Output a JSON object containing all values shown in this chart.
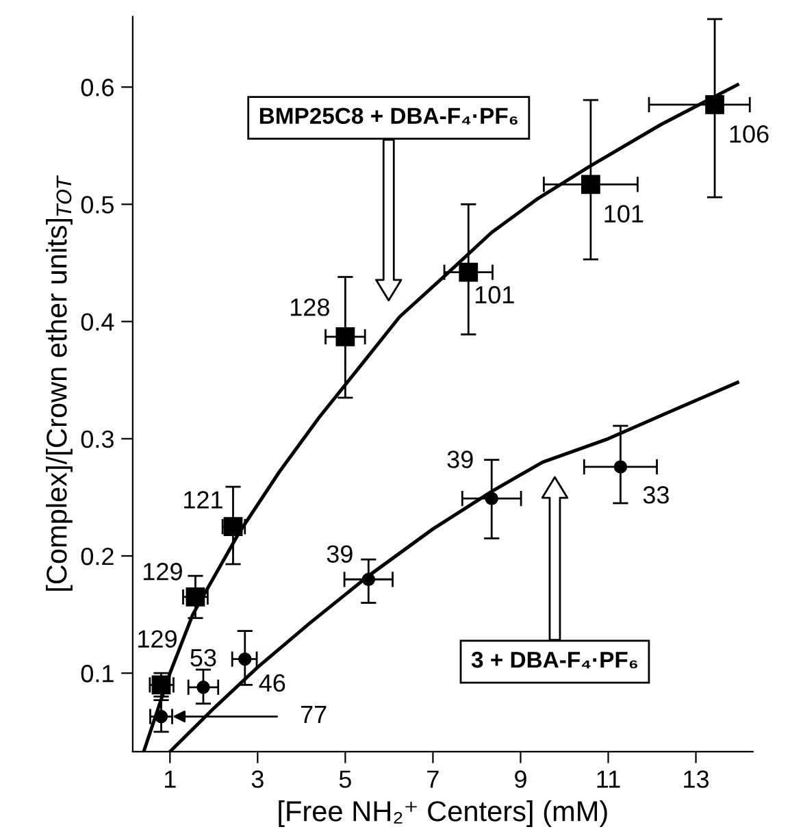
{
  "chart_data": {
    "type": "scatter",
    "xlabel": "[Free NH₂⁺ Centers] (mM)",
    "ylabel": "[Complex]/[Crown ether units]$_{TOT}$",
    "xlim": [
      0.15,
      14.3
    ],
    "ylim": [
      0.033,
      0.66
    ],
    "xticks": [
      1,
      3,
      5,
      7,
      9,
      11,
      13
    ],
    "yticks": [
      0.1,
      0.2,
      0.3,
      0.4,
      0.5,
      0.6
    ],
    "grid": false,
    "legend": false,
    "series": [
      {
        "marker": "square",
        "color": "#000000",
        "x": [
          0.8,
          1.58,
          2.44,
          5.0,
          7.81,
          10.6,
          13.43
        ],
        "values": [
          0.09,
          0.165,
          0.225,
          0.387,
          0.442,
          0.517,
          0.585
        ],
        "errors": [
          [
            0.08,
            0.1
          ],
          [
            0.147,
            0.183
          ],
          [
            0.193,
            0.259
          ],
          [
            0.335,
            0.438
          ],
          [
            0.389,
            0.5
          ],
          [
            0.453,
            0.589
          ],
          [
            0.506,
            0.658
          ]
        ],
        "xerrors": [
          [
            0.54,
            1.08
          ],
          [
            1.3,
            1.86
          ],
          [
            2.2,
            2.71
          ],
          [
            4.55,
            5.45
          ],
          [
            7.26,
            8.36
          ],
          [
            9.53,
            11.67
          ],
          [
            11.93,
            14.23
          ]
        ]
      },
      {
        "marker": "circle",
        "color": "#000000",
        "x": [
          0.8,
          1.76,
          2.71,
          5.53,
          8.34,
          11.28
        ],
        "values": [
          0.063,
          0.088,
          0.112,
          0.18,
          0.249,
          0.276
        ],
        "errors": [
          [
            0.05,
            0.077
          ],
          [
            0.074,
            0.103
          ],
          [
            0.09,
            0.136
          ],
          [
            0.16,
            0.197
          ],
          [
            0.215,
            0.282
          ],
          [
            0.245,
            0.311
          ]
        ],
        "xerrors": [
          [
            0.55,
            1.05
          ],
          [
            1.42,
            2.1
          ],
          [
            2.42,
            2.98
          ],
          [
            4.98,
            6.08
          ],
          [
            7.67,
            9.01
          ],
          [
            10.45,
            12.11
          ]
        ]
      },
      {
        "type": "line",
        "marker": "none",
        "line_style": "solid",
        "color": "#000000",
        "x": [
          0.4,
          1.0,
          1.52,
          2.58,
          3.5,
          4.4,
          5.3,
          6.24,
          7.3,
          8.34,
          9.4,
          10.56,
          12.2,
          13.95
        ],
        "values": [
          0.033,
          0.1,
          0.15,
          0.22,
          0.272,
          0.318,
          0.36,
          0.404,
          0.44,
          0.476,
          0.505,
          0.532,
          0.568,
          0.602
        ]
      },
      {
        "type": "line",
        "marker": "none",
        "line_style": "solid",
        "color": "#000000",
        "x": [
          1.0,
          2.0,
          3.0,
          4.2,
          5.53,
          7.0,
          8.34,
          9.5,
          11.0,
          12.4,
          13.95
        ],
        "values": [
          0.033,
          0.07,
          0.105,
          0.143,
          0.183,
          0.223,
          0.255,
          0.28,
          0.3,
          0.323,
          0.348
        ]
      }
    ],
    "annotations": [
      "129",
      "129",
      "121",
      "128",
      "101",
      "101",
      "106",
      "53",
      "46",
      "77",
      "39",
      "39",
      "33",
      "BMP25C8 + DBA-F₄·PF₆",
      "3 + DBA-F₄·PF₆"
    ]
  }
}
